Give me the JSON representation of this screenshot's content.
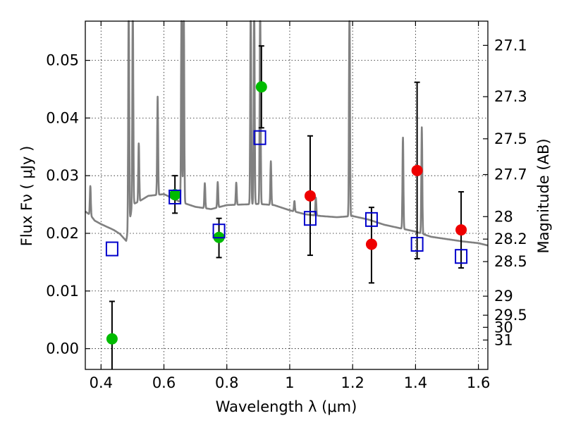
{
  "chart_data": {
    "type": "scatter",
    "xlabel": "Wavelength  λ (μm)",
    "ylabel": "Flux  Fν  ( μJy )",
    "y2label": "Magnitude (AB)",
    "xlim": [
      0.35,
      1.63
    ],
    "ylim": [
      -0.0036,
      0.0568
    ],
    "grid": true,
    "x_ticks": [
      0.4,
      0.6,
      0.8,
      1.0,
      1.2,
      1.4,
      1.6
    ],
    "x_tick_labels": [
      "0.4",
      "0.6",
      "0.8",
      "1",
      "1.2",
      "1.4",
      "1.6"
    ],
    "y_ticks": [
      0.0,
      0.01,
      0.02,
      0.03,
      0.04,
      0.05
    ],
    "y_tick_labels": [
      "0.00",
      "0.01",
      "0.02",
      "0.03",
      "0.04",
      "0.05"
    ],
    "y2_ticks": [
      {
        "flux": 0.0526,
        "label": "27.1"
      },
      {
        "flux": 0.0437,
        "label": "27.3"
      },
      {
        "flux": 0.0364,
        "label": "27.5"
      },
      {
        "flux": 0.0302,
        "label": "27.7"
      },
      {
        "flux": 0.0229,
        "label": "28"
      },
      {
        "flux": 0.019,
        "label": "28.2"
      },
      {
        "flux": 0.0151,
        "label": "28.5"
      },
      {
        "flux": 0.0091,
        "label": "29"
      },
      {
        "flux": 0.0058,
        "label": "29.5"
      },
      {
        "flux": 0.0037,
        "label": "30"
      },
      {
        "flux": 0.0015,
        "label": "31"
      }
    ],
    "colors": {
      "model": "#808080",
      "green": "#00bb00",
      "red": "#ee0000",
      "squares": "#0000cc",
      "errorbar": "#000000"
    },
    "model_spectrum": {
      "x": [
        0.35,
        0.36,
        0.37,
        0.38,
        0.4,
        0.42,
        0.44,
        0.46,
        0.48,
        0.5,
        0.52,
        0.55,
        0.6,
        0.65,
        0.7,
        0.75,
        0.8,
        0.85,
        0.9,
        0.95,
        1.0,
        1.05,
        1.1,
        1.15,
        1.2,
        1.25,
        1.3,
        1.35,
        1.4,
        1.45,
        1.5,
        1.55,
        1.6,
        1.63
      ],
      "y": [
        0.0238,
        0.0234,
        0.0229,
        0.0222,
        0.0216,
        0.0211,
        0.0206,
        0.0199,
        0.0187,
        0.025,
        0.0255,
        0.0265,
        0.0268,
        0.0255,
        0.0246,
        0.0242,
        0.0249,
        0.025,
        0.0251,
        0.0249,
        0.024,
        0.0233,
        0.023,
        0.0228,
        0.023,
        0.0224,
        0.0215,
        0.0209,
        0.0203,
        0.0194,
        0.019,
        0.0186,
        0.0183,
        0.0179
      ],
      "lines": [
        {
          "x": 0.366,
          "peak": 0.0282
        },
        {
          "x": 0.488,
          "peak": 0.06
        },
        {
          "x": 0.501,
          "peak": 0.06
        },
        {
          "x": 0.52,
          "peak": 0.0356
        },
        {
          "x": 0.58,
          "peak": 0.0437
        },
        {
          "x": 0.656,
          "peak": 0.06
        },
        {
          "x": 0.663,
          "peak": 0.06
        },
        {
          "x": 0.73,
          "peak": 0.0287
        },
        {
          "x": 0.771,
          "peak": 0.0289
        },
        {
          "x": 0.83,
          "peak": 0.0288
        },
        {
          "x": 0.876,
          "peak": 0.06
        },
        {
          "x": 0.887,
          "peak": 0.06
        },
        {
          "x": 0.906,
          "peak": 0.06
        },
        {
          "x": 0.94,
          "peak": 0.0325
        },
        {
          "x": 1.015,
          "peak": 0.0256
        },
        {
          "x": 1.083,
          "peak": 0.0262
        },
        {
          "x": 1.19,
          "peak": 0.06
        },
        {
          "x": 1.36,
          "peak": 0.0366
        },
        {
          "x": 1.42,
          "peak": 0.0384
        }
      ]
    },
    "series": [
      {
        "marker": "filled-circle",
        "color": "green",
        "points": [
          {
            "x": 0.435,
            "y": 0.0017,
            "err_lo": 0.0055,
            "err_hi": 0.0065
          },
          {
            "x": 0.635,
            "y": 0.0267,
            "err_lo": 0.0032,
            "err_hi": 0.0033
          },
          {
            "x": 0.775,
            "y": 0.0193,
            "err_lo": 0.0035,
            "err_hi": 0.0033
          },
          {
            "x": 0.91,
            "y": 0.0454,
            "err_lo": 0.0071,
            "err_hi": 0.0071
          }
        ]
      },
      {
        "marker": "filled-circle",
        "color": "red",
        "points": [
          {
            "x": 1.065,
            "y": 0.0265,
            "err_lo": 0.0103,
            "err_hi": 0.0104
          },
          {
            "x": 1.26,
            "y": 0.0181,
            "err_lo": 0.0067,
            "err_hi": 0.0064
          },
          {
            "x": 1.405,
            "y": 0.0309,
            "err_lo": 0.0153,
            "err_hi": 0.0153
          },
          {
            "x": 1.545,
            "y": 0.0206,
            "err_lo": 0.0066,
            "err_hi": 0.0066
          }
        ]
      },
      {
        "marker": "open-square",
        "color": "squares",
        "points": [
          {
            "x": 0.435,
            "y": 0.0173
          },
          {
            "x": 0.635,
            "y": 0.0263
          },
          {
            "x": 0.775,
            "y": 0.0204
          },
          {
            "x": 0.905,
            "y": 0.0366
          },
          {
            "x": 1.065,
            "y": 0.0226
          },
          {
            "x": 1.26,
            "y": 0.0224
          },
          {
            "x": 1.405,
            "y": 0.0181
          },
          {
            "x": 1.545,
            "y": 0.016
          }
        ]
      }
    ]
  }
}
